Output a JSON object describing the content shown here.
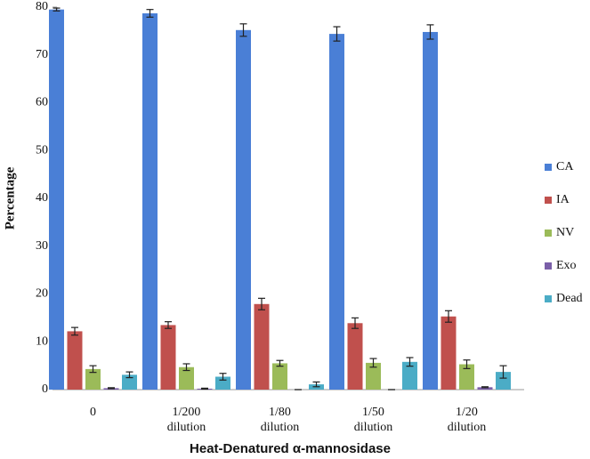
{
  "chart_data": {
    "type": "bar",
    "x_label": "Heat-Denatured α-mannosidase",
    "y_label": "Percentage",
    "categories": [
      "0",
      "1/200 dilution",
      "1/80 dilution",
      "1/50 dilution",
      "1/20 dilution"
    ],
    "series": [
      {
        "name": "CA",
        "color": "#4a7fd6",
        "values": [
          79.5,
          78.7,
          75.2,
          74.4,
          74.8
        ],
        "errors": [
          0.3,
          0.8,
          1.3,
          1.5,
          1.5
        ]
      },
      {
        "name": "IA",
        "color": "#c0504d",
        "values": [
          12.2,
          13.5,
          17.9,
          13.9,
          15.3
        ],
        "errors": [
          0.8,
          0.7,
          1.2,
          1.1,
          1.2
        ]
      },
      {
        "name": "NV",
        "color": "#9bbb59",
        "values": [
          4.3,
          4.7,
          5.5,
          5.6,
          5.3
        ],
        "errors": [
          0.7,
          0.7,
          0.6,
          0.9,
          0.9
        ]
      },
      {
        "name": "Exo",
        "color": "#7a5fa8",
        "values": [
          0.3,
          0.2,
          0,
          0,
          0.5
        ],
        "errors": [
          0.1,
          0.1,
          0,
          0,
          0.1
        ]
      },
      {
        "name": "Dead",
        "color": "#4bacc6",
        "values": [
          3.1,
          2.7,
          1.1,
          5.8,
          3.7
        ],
        "errors": [
          0.6,
          0.7,
          0.5,
          0.9,
          1.3
        ]
      }
    ],
    "ylim": [
      0,
      80
    ],
    "yticks": [
      0,
      10,
      20,
      30,
      40,
      50,
      60,
      70,
      80
    ],
    "legend": "right"
  }
}
